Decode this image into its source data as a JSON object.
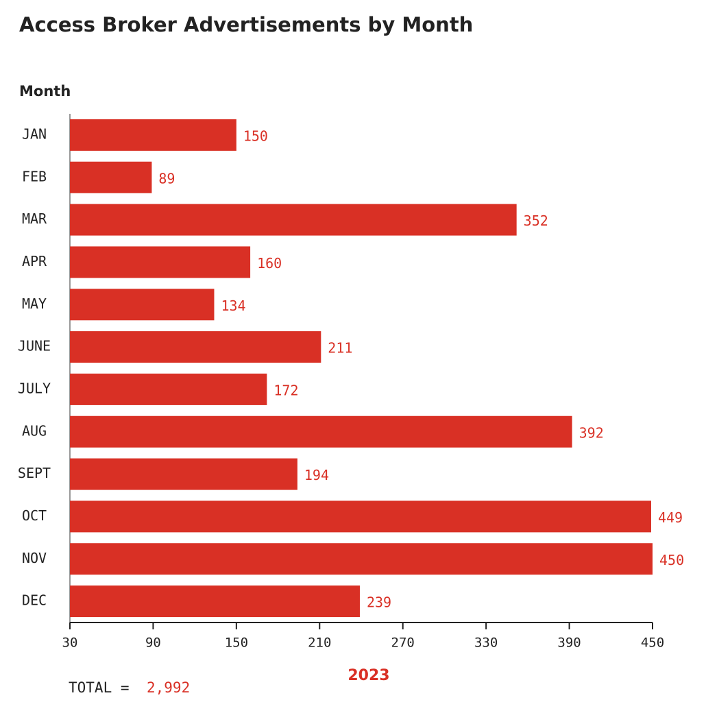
{
  "chart_data": {
    "type": "bar",
    "orientation": "horizontal",
    "title": "Access Broker Advertisements by Month",
    "y_label": "Month",
    "x_label": "2023",
    "categories": [
      "JAN",
      "FEB",
      "MAR",
      "APR",
      "MAY",
      "JUNE",
      "JULY",
      "AUG",
      "SEPT",
      "OCT",
      "NOV",
      "DEC"
    ],
    "values": [
      150,
      89,
      352,
      160,
      134,
      211,
      172,
      392,
      194,
      449,
      450,
      239
    ],
    "color": "#d93025",
    "xlim": [
      30,
      450
    ],
    "xticks": [
      30,
      90,
      150,
      210,
      270,
      330,
      390,
      450
    ],
    "total_label": "TOTAL =",
    "total_value": "2,992"
  }
}
